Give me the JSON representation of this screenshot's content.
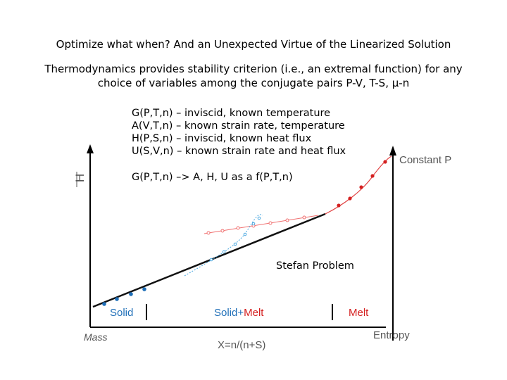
{
  "title": "Optimize what when? And an Unexpected Virtue of the Linearized Solution",
  "subtitle": "Thermodynamics provides stability criterion (i.e., an extremal function) for any choice of variables among the conjugate pairs P-V, T-S, μ-n",
  "potentials": [
    "G(P,T,n) – inviscid, known temperature",
    "A(V,T,n) – known strain rate, temperature",
    "H(P,S,n) – inviscid, known heat flux",
    "U(S,V,n) – known strain rate and heat flux"
  ],
  "mapping": "G(P,T,n) –> A, H, U as a f(P,T,n)",
  "stefan_label": "Stefan Problem",
  "plot": {
    "y_axis_label": "H",
    "x_axis_label": "X=n/(n+S)",
    "x_left_label": "Mass",
    "x_right_label": "Entropy",
    "curve_label": "Constant P",
    "regions": {
      "solid": "Solid",
      "solid_melt_solid": "Solid",
      "solid_melt_plus": "+",
      "solid_melt_melt": "Melt",
      "melt": "Melt"
    },
    "colors": {
      "axis": "#000000",
      "curve": "#111111",
      "solid": "#1f6fb8",
      "melt": "#d42020",
      "melt_light": "#f07070",
      "solid_light": "#4aa8e0",
      "label_gray": "#555555"
    }
  }
}
